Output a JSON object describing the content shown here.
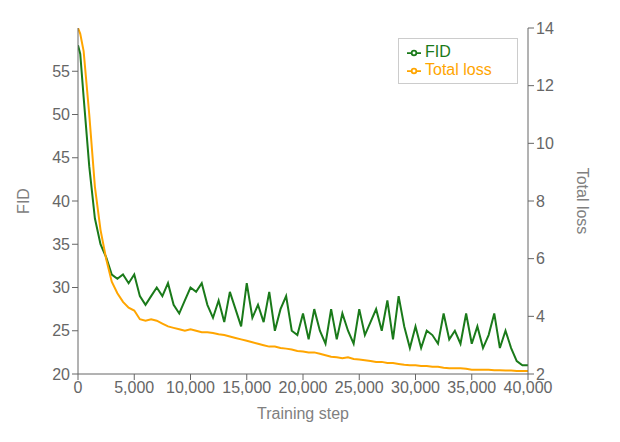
{
  "chart_data": {
    "type": "line",
    "xlabel": "Training step",
    "ylabel": "FID",
    "y2label": "Total loss",
    "x": [
      0,
      200,
      500,
      1000,
      1500,
      2000,
      2500,
      3000,
      3500,
      4000,
      4500,
      5000,
      5500,
      6000,
      6500,
      7000,
      7500,
      8000,
      8500,
      9000,
      9500,
      10000,
      10500,
      11000,
      11500,
      12000,
      12500,
      13000,
      13500,
      14000,
      14500,
      15000,
      15500,
      16000,
      16500,
      17000,
      17500,
      18000,
      18500,
      19000,
      19500,
      20000,
      20500,
      21000,
      21500,
      22000,
      22500,
      23000,
      23500,
      24000,
      24500,
      25000,
      25500,
      26000,
      26500,
      27000,
      27500,
      28000,
      28500,
      29000,
      29500,
      30000,
      30500,
      31000,
      31500,
      32000,
      32500,
      33000,
      33500,
      34000,
      34500,
      35000,
      35500,
      36000,
      36500,
      37000,
      37500,
      38000,
      38500,
      39000,
      39500,
      40000
    ],
    "series": [
      {
        "name": "FID",
        "color": "#1a7a1a",
        "values": [
          58.0,
          57.0,
          52.0,
          44.0,
          38.0,
          35.0,
          33.5,
          31.5,
          31.0,
          31.5,
          30.5,
          31.5,
          29.0,
          28.0,
          29.0,
          30.0,
          29.0,
          30.5,
          28.0,
          27.0,
          28.5,
          30.0,
          29.5,
          30.5,
          28.0,
          26.5,
          28.5,
          26.0,
          29.5,
          27.5,
          25.5,
          30.5,
          26.5,
          28.0,
          26.0,
          29.5,
          25.0,
          27.5,
          29.0,
          25.0,
          24.5,
          27.0,
          24.0,
          27.5,
          25.0,
          23.5,
          27.5,
          24.0,
          27.0,
          25.0,
          23.5,
          27.5,
          24.5,
          26.0,
          27.5,
          25.0,
          28.5,
          24.0,
          29.0,
          25.5,
          23.0,
          25.5,
          23.0,
          25.0,
          24.5,
          23.5,
          27.0,
          24.0,
          25.0,
          23.5,
          27.0,
          23.5,
          25.5,
          23.0,
          24.5,
          27.0,
          23.0,
          25.0,
          23.0,
          21.5,
          21.0,
          21.0
        ]
      },
      {
        "name": "Total loss",
        "color": "#ffa500",
        "axis": "y2",
        "values": [
          14.0,
          13.8,
          13.2,
          11.0,
          8.5,
          7.0,
          6.0,
          5.2,
          4.8,
          4.5,
          4.3,
          4.2,
          3.9,
          3.85,
          3.9,
          3.85,
          3.75,
          3.65,
          3.6,
          3.55,
          3.5,
          3.55,
          3.5,
          3.45,
          3.45,
          3.42,
          3.38,
          3.35,
          3.3,
          3.25,
          3.2,
          3.15,
          3.1,
          3.05,
          3.0,
          2.95,
          2.95,
          2.9,
          2.88,
          2.85,
          2.8,
          2.78,
          2.75,
          2.75,
          2.7,
          2.65,
          2.6,
          2.58,
          2.55,
          2.58,
          2.52,
          2.5,
          2.48,
          2.45,
          2.42,
          2.42,
          2.38,
          2.38,
          2.35,
          2.32,
          2.3,
          2.3,
          2.28,
          2.28,
          2.25,
          2.25,
          2.22,
          2.2,
          2.2,
          2.2,
          2.18,
          2.15,
          2.15,
          2.15,
          2.15,
          2.13,
          2.13,
          2.12,
          2.12,
          2.1,
          2.1,
          2.1
        ]
      }
    ],
    "xlim": [
      0,
      40000
    ],
    "xticks": [
      0,
      {
        "value": 5000,
        "label": "5,000"
      },
      {
        "value": 10000,
        "label": "10,000"
      },
      {
        "value": 15000,
        "label": "15,000"
      },
      {
        "value": 20000,
        "label": "20,000"
      },
      {
        "value": 25000,
        "label": "25,000"
      },
      {
        "value": 30000,
        "label": "30,000"
      },
      {
        "value": 35000,
        "label": "35,000"
      },
      {
        "value": 40000,
        "label": "40,000"
      }
    ],
    "ylim": [
      20,
      60
    ],
    "yticks": [
      20,
      25,
      30,
      35,
      40,
      45,
      50,
      55
    ],
    "y2lim": [
      2,
      14
    ],
    "y2ticks": [
      2,
      4,
      6,
      8,
      10,
      12,
      14
    ],
    "grid": false,
    "legend": "upper right"
  }
}
